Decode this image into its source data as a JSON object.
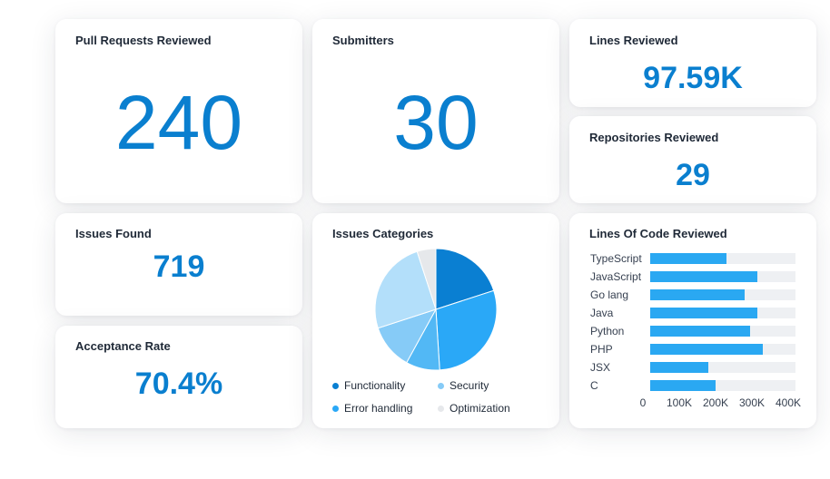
{
  "cards": {
    "pull_requests": {
      "title": "Pull Requests Reviewed",
      "value": "240"
    },
    "submitters": {
      "title": "Submitters",
      "value": "30"
    },
    "lines_reviewed": {
      "title": "Lines Reviewed",
      "value": "97.59K"
    },
    "repositories": {
      "title": "Repositories Reviewed",
      "value": "29"
    },
    "issues_found": {
      "title": "Issues Found",
      "value": "719"
    },
    "acceptance_rate": {
      "title": "Acceptance Rate",
      "value": "70.4%"
    }
  },
  "colors": {
    "accent": "#0a7fcf",
    "bar": "#2aa8f2",
    "track": "#eef0f3"
  },
  "chart_data": [
    {
      "type": "pie",
      "title": "Issues Categories",
      "slices": [
        {
          "label": "Functionality",
          "value": 20,
          "color": "#0a7fd2"
        },
        {
          "label": "Error handling",
          "value": 29,
          "color": "#2aa8f7"
        },
        {
          "label": "",
          "value": 9,
          "color": "#52b8f5"
        },
        {
          "label": "Security",
          "value": 12,
          "color": "#86cbf7"
        },
        {
          "label": "",
          "value": 25,
          "color": "#b3dffa"
        },
        {
          "label": "Optimization",
          "value": 5,
          "color": "#e6e8eb"
        }
      ],
      "legend": [
        {
          "label": "Functionality",
          "color": "#0a7fd2"
        },
        {
          "label": "Security",
          "color": "#86cbf7"
        },
        {
          "label": "Error handling",
          "color": "#2aa8f7"
        },
        {
          "label": "Optimization",
          "color": "#e6e8eb"
        }
      ],
      "legend_position": "bottom"
    },
    {
      "type": "bar",
      "orientation": "horizontal",
      "title": "Lines Of Code Reviewed",
      "categories": [
        "TypeScript",
        "JavaScript",
        "Go lang",
        "Java",
        "Python",
        "PHP",
        "JSX",
        "C"
      ],
      "values": [
        210000,
        295000,
        260000,
        295000,
        275000,
        310000,
        160000,
        180000
      ],
      "xlim": [
        0,
        400000
      ],
      "xticks": [
        "0",
        "100K",
        "200K",
        "300K",
        "400K"
      ]
    }
  ]
}
